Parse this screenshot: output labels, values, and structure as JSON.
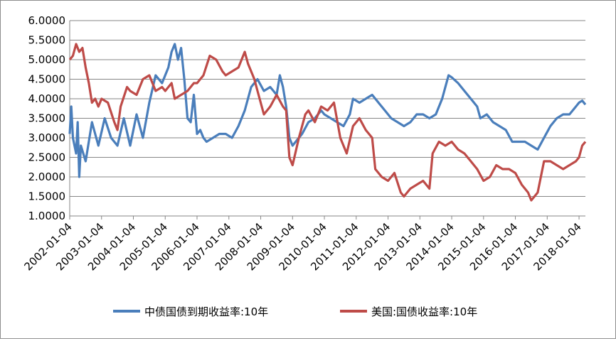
{
  "chart_data": {
    "type": "line",
    "ylim": [
      1.0,
      6.0
    ],
    "yticks": [
      "6.0000",
      "5.5000",
      "5.0000",
      "4.5000",
      "4.0000",
      "3.5000",
      "3.0000",
      "2.5000",
      "2.0000",
      "1.5000",
      "1.0000"
    ],
    "xticks": [
      "2002-01-04",
      "2003-01-04",
      "2004-01-04",
      "2005-01-04",
      "2006-01-04",
      "2007-01-04",
      "2008-01-04",
      "2009-01-04",
      "2010-01-04",
      "2011-01-04",
      "2012-01-04",
      "2013-01-04",
      "2014-01-04",
      "2015-01-04",
      "2016-01-04",
      "2017-01-04",
      "2018-01-04"
    ],
    "xlim": [
      2002.0,
      2018.2
    ],
    "grid": true,
    "legend_position": "bottom",
    "series": [
      {
        "name": "中债国债到期收益率:10年",
        "color": "#4a7ebb",
        "points": [
          [
            2002.0,
            3.1
          ],
          [
            2002.05,
            3.8
          ],
          [
            2002.1,
            3.0
          ],
          [
            2002.2,
            2.6
          ],
          [
            2002.25,
            3.4
          ],
          [
            2002.3,
            2.0
          ],
          [
            2002.35,
            2.8
          ],
          [
            2002.5,
            2.4
          ],
          [
            2002.7,
            3.4
          ],
          [
            2002.9,
            2.8
          ],
          [
            2003.1,
            3.5
          ],
          [
            2003.3,
            3.0
          ],
          [
            2003.5,
            2.8
          ],
          [
            2003.7,
            3.5
          ],
          [
            2003.9,
            2.8
          ],
          [
            2004.1,
            3.6
          ],
          [
            2004.3,
            3.0
          ],
          [
            2004.5,
            3.9
          ],
          [
            2004.7,
            4.6
          ],
          [
            2004.9,
            4.4
          ],
          [
            2005.1,
            4.8
          ],
          [
            2005.2,
            5.2
          ],
          [
            2005.3,
            5.4
          ],
          [
            2005.4,
            5.0
          ],
          [
            2005.5,
            5.3
          ],
          [
            2005.6,
            4.5
          ],
          [
            2005.7,
            3.5
          ],
          [
            2005.8,
            3.4
          ],
          [
            2005.9,
            4.1
          ],
          [
            2006.0,
            3.1
          ],
          [
            2006.1,
            3.2
          ],
          [
            2006.2,
            3.0
          ],
          [
            2006.3,
            2.9
          ],
          [
            2006.5,
            3.0
          ],
          [
            2006.7,
            3.1
          ],
          [
            2006.9,
            3.1
          ],
          [
            2007.1,
            3.0
          ],
          [
            2007.3,
            3.3
          ],
          [
            2007.5,
            3.7
          ],
          [
            2007.7,
            4.3
          ],
          [
            2007.9,
            4.5
          ],
          [
            2008.1,
            4.2
          ],
          [
            2008.3,
            4.3
          ],
          [
            2008.5,
            4.1
          ],
          [
            2008.6,
            4.6
          ],
          [
            2008.7,
            4.3
          ],
          [
            2008.8,
            3.8
          ],
          [
            2008.9,
            3.0
          ],
          [
            2009.0,
            2.8
          ],
          [
            2009.1,
            2.9
          ],
          [
            2009.3,
            3.1
          ],
          [
            2009.5,
            3.4
          ],
          [
            2009.7,
            3.5
          ],
          [
            2009.9,
            3.7
          ],
          [
            2010.0,
            3.6
          ],
          [
            2010.2,
            3.5
          ],
          [
            2010.4,
            3.4
          ],
          [
            2010.6,
            3.3
          ],
          [
            2010.8,
            3.6
          ],
          [
            2010.9,
            4.0
          ],
          [
            2011.1,
            3.9
          ],
          [
            2011.3,
            4.0
          ],
          [
            2011.5,
            4.1
          ],
          [
            2011.7,
            3.9
          ],
          [
            2011.9,
            3.7
          ],
          [
            2012.1,
            3.5
          ],
          [
            2012.3,
            3.4
          ],
          [
            2012.5,
            3.3
          ],
          [
            2012.7,
            3.4
          ],
          [
            2012.9,
            3.6
          ],
          [
            2013.1,
            3.6
          ],
          [
            2013.3,
            3.5
          ],
          [
            2013.5,
            3.6
          ],
          [
            2013.7,
            4.0
          ],
          [
            2013.9,
            4.6
          ],
          [
            2014.0,
            4.55
          ],
          [
            2014.2,
            4.4
          ],
          [
            2014.4,
            4.2
          ],
          [
            2014.6,
            4.0
          ],
          [
            2014.8,
            3.8
          ],
          [
            2014.9,
            3.5
          ],
          [
            2015.1,
            3.6
          ],
          [
            2015.3,
            3.4
          ],
          [
            2015.5,
            3.3
          ],
          [
            2015.7,
            3.2
          ],
          [
            2015.9,
            2.9
          ],
          [
            2016.1,
            2.9
          ],
          [
            2016.3,
            2.9
          ],
          [
            2016.5,
            2.8
          ],
          [
            2016.7,
            2.7
          ],
          [
            2016.9,
            3.0
          ],
          [
            2017.1,
            3.3
          ],
          [
            2017.3,
            3.5
          ],
          [
            2017.5,
            3.6
          ],
          [
            2017.7,
            3.6
          ],
          [
            2017.9,
            3.8
          ],
          [
            2018.0,
            3.9
          ],
          [
            2018.1,
            3.95
          ],
          [
            2018.2,
            3.85
          ]
        ]
      },
      {
        "name": "美国:国债收益率:10年",
        "color": "#be4b48",
        "points": [
          [
            2002.0,
            5.0
          ],
          [
            2002.1,
            5.1
          ],
          [
            2002.2,
            5.4
          ],
          [
            2002.3,
            5.2
          ],
          [
            2002.4,
            5.3
          ],
          [
            2002.5,
            4.8
          ],
          [
            2002.6,
            4.4
          ],
          [
            2002.7,
            3.9
          ],
          [
            2002.8,
            4.0
          ],
          [
            2002.9,
            3.8
          ],
          [
            2003.0,
            4.0
          ],
          [
            2003.2,
            3.9
          ],
          [
            2003.4,
            3.4
          ],
          [
            2003.5,
            3.2
          ],
          [
            2003.6,
            3.8
          ],
          [
            2003.8,
            4.3
          ],
          [
            2003.9,
            4.2
          ],
          [
            2004.1,
            4.1
          ],
          [
            2004.3,
            4.5
          ],
          [
            2004.5,
            4.6
          ],
          [
            2004.7,
            4.2
          ],
          [
            2004.9,
            4.3
          ],
          [
            2005.0,
            4.2
          ],
          [
            2005.2,
            4.4
          ],
          [
            2005.3,
            4.0
          ],
          [
            2005.5,
            4.1
          ],
          [
            2005.7,
            4.2
          ],
          [
            2005.9,
            4.4
          ],
          [
            2006.0,
            4.4
          ],
          [
            2006.2,
            4.6
          ],
          [
            2006.4,
            5.1
          ],
          [
            2006.6,
            5.0
          ],
          [
            2006.8,
            4.7
          ],
          [
            2006.9,
            4.6
          ],
          [
            2007.1,
            4.7
          ],
          [
            2007.3,
            4.8
          ],
          [
            2007.5,
            5.2
          ],
          [
            2007.6,
            4.9
          ],
          [
            2007.8,
            4.5
          ],
          [
            2007.9,
            4.2
          ],
          [
            2008.1,
            3.6
          ],
          [
            2008.3,
            3.8
          ],
          [
            2008.5,
            4.1
          ],
          [
            2008.7,
            3.8
          ],
          [
            2008.8,
            3.7
          ],
          [
            2008.9,
            2.5
          ],
          [
            2009.0,
            2.3
          ],
          [
            2009.2,
            3.0
          ],
          [
            2009.4,
            3.6
          ],
          [
            2009.5,
            3.7
          ],
          [
            2009.7,
            3.4
          ],
          [
            2009.9,
            3.8
          ],
          [
            2010.1,
            3.7
          ],
          [
            2010.3,
            3.9
          ],
          [
            2010.5,
            3.0
          ],
          [
            2010.7,
            2.6
          ],
          [
            2010.9,
            3.3
          ],
          [
            2011.1,
            3.5
          ],
          [
            2011.3,
            3.2
          ],
          [
            2011.5,
            3.0
          ],
          [
            2011.6,
            2.2
          ],
          [
            2011.8,
            2.0
          ],
          [
            2012.0,
            1.9
          ],
          [
            2012.2,
            2.1
          ],
          [
            2012.4,
            1.6
          ],
          [
            2012.5,
            1.5
          ],
          [
            2012.7,
            1.7
          ],
          [
            2012.9,
            1.8
          ],
          [
            2013.1,
            1.9
          ],
          [
            2013.3,
            1.7
          ],
          [
            2013.4,
            2.6
          ],
          [
            2013.6,
            2.9
          ],
          [
            2013.8,
            2.8
          ],
          [
            2014.0,
            2.9
          ],
          [
            2014.2,
            2.7
          ],
          [
            2014.4,
            2.6
          ],
          [
            2014.6,
            2.4
          ],
          [
            2014.8,
            2.2
          ],
          [
            2015.0,
            1.9
          ],
          [
            2015.2,
            2.0
          ],
          [
            2015.4,
            2.3
          ],
          [
            2015.6,
            2.2
          ],
          [
            2015.8,
            2.2
          ],
          [
            2016.0,
            2.1
          ],
          [
            2016.2,
            1.8
          ],
          [
            2016.4,
            1.6
          ],
          [
            2016.5,
            1.4
          ],
          [
            2016.7,
            1.6
          ],
          [
            2016.9,
            2.4
          ],
          [
            2017.1,
            2.4
          ],
          [
            2017.3,
            2.3
          ],
          [
            2017.5,
            2.2
          ],
          [
            2017.7,
            2.3
          ],
          [
            2017.9,
            2.4
          ],
          [
            2018.0,
            2.5
          ],
          [
            2018.1,
            2.8
          ],
          [
            2018.2,
            2.9
          ]
        ]
      }
    ]
  }
}
